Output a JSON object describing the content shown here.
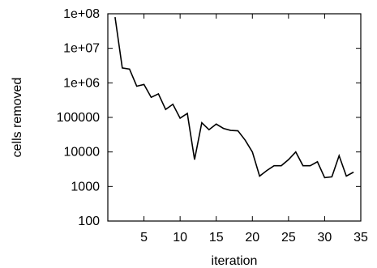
{
  "chart_data": {
    "type": "line",
    "title": "",
    "xlabel": "iteration",
    "ylabel": "cells removed",
    "xlim": [
      0,
      35
    ],
    "ylim": [
      100,
      100000000
    ],
    "yscale": "log",
    "grid": false,
    "legend": "none",
    "x_ticks": [
      "5",
      "10",
      "15",
      "20",
      "25",
      "30",
      "35"
    ],
    "y_ticks": [
      "1e+08",
      "1e+07",
      "1e+06",
      "100000",
      "10000",
      "1000",
      "100"
    ],
    "series": [
      {
        "color": "#000000",
        "x": [
          1,
          2,
          3,
          4,
          5,
          6,
          7,
          8,
          9,
          10,
          11,
          12,
          13,
          14,
          15,
          16,
          17,
          18,
          19,
          20,
          21,
          22,
          23,
          24,
          25,
          26,
          27,
          28,
          29,
          30,
          31,
          32,
          33,
          34
        ],
        "y": [
          80000000,
          2700000,
          2500000,
          800000,
          900000,
          380000,
          480000,
          170000,
          240000,
          95000,
          130000,
          6000,
          70000,
          44000,
          64000,
          48000,
          42000,
          41000,
          22000,
          10000,
          2000,
          2900,
          4000,
          4000,
          6000,
          10000,
          4000,
          4000,
          5200,
          1800,
          1900,
          7800,
          2000,
          2600
        ]
      }
    ]
  }
}
